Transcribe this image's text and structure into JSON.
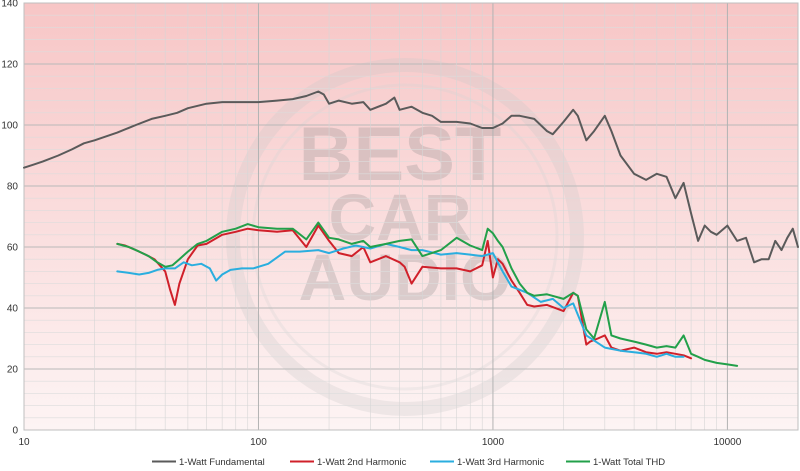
{
  "chart_data": {
    "type": "line",
    "title": "",
    "xlabel": "",
    "ylabel": "",
    "xscale": "log",
    "xlim": [
      10,
      20000
    ],
    "ylim": [
      0,
      140
    ],
    "grid": true,
    "legend_position": "bottom",
    "background": "pink gradient toward top",
    "watermark": "BEST CAR AUDIO",
    "x_tick_labels": [
      "10",
      "100",
      "1000",
      "10000"
    ],
    "x_tick_values": [
      10,
      100,
      1000,
      10000
    ],
    "y_tick_labels": [
      "0",
      "20",
      "40",
      "60",
      "80",
      "100",
      "120",
      "140"
    ],
    "y_tick_values": [
      0,
      20,
      40,
      60,
      80,
      100,
      120,
      140
    ],
    "series": [
      {
        "name": "1-Watt Fundamental",
        "color": "#5a5a5a",
        "x": [
          10,
          11,
          12,
          14,
          16,
          18,
          20,
          25,
          30,
          35,
          40,
          45,
          50,
          60,
          70,
          80,
          100,
          120,
          140,
          160,
          180,
          190,
          200,
          220,
          250,
          280,
          300,
          350,
          380,
          400,
          450,
          500,
          550,
          600,
          700,
          800,
          900,
          1000,
          1100,
          1200,
          1300,
          1500,
          1700,
          1800,
          2000,
          2200,
          2300,
          2500,
          2700,
          3000,
          3200,
          3500,
          4000,
          4500,
          5000,
          5500,
          6000,
          6500,
          7000,
          7500,
          8000,
          8500,
          9000,
          10000,
          11000,
          12000,
          13000,
          14000,
          15000,
          16000,
          17000,
          18000,
          19000,
          20000
        ],
        "y": [
          86,
          87,
          88,
          90,
          92,
          94,
          95,
          97.5,
          100,
          102,
          103,
          104,
          105.5,
          107,
          107.5,
          107.5,
          107.5,
          108,
          108.5,
          109.5,
          111,
          110,
          107,
          108,
          107,
          107.5,
          105,
          107,
          109,
          105,
          106,
          104,
          103,
          101,
          101,
          100.5,
          99,
          99,
          100.5,
          103,
          103,
          102,
          98,
          97,
          101,
          105,
          103,
          95,
          98,
          103,
          98,
          90,
          84,
          82,
          84,
          83,
          76,
          81,
          71,
          62,
          67,
          65,
          64,
          67,
          62,
          63,
          55,
          56,
          56,
          62,
          59,
          63,
          66,
          60
        ]
      },
      {
        "name": "1-Watt 2nd Harmonic",
        "color": "#d0202a",
        "x": [
          25,
          27,
          30,
          33,
          36,
          40,
          42,
          44,
          46,
          50,
          55,
          60,
          70,
          80,
          90,
          100,
          120,
          140,
          160,
          180,
          200,
          220,
          250,
          280,
          300,
          350,
          400,
          420,
          450,
          500,
          600,
          700,
          800,
          900,
          950,
          1000,
          1050,
          1100,
          1200,
          1300,
          1400,
          1500,
          1700,
          2000,
          2200,
          2300,
          2500,
          2600,
          2800,
          3000,
          3200,
          3500,
          4000,
          4500,
          5000,
          5500,
          6000,
          6500,
          7000
        ],
        "y": [
          61,
          60.5,
          59,
          57.5,
          56,
          52,
          46,
          41,
          48,
          56,
          60.5,
          61,
          64,
          65,
          66,
          65.5,
          65,
          65.5,
          60,
          67,
          62,
          58,
          57,
          60,
          55,
          57,
          55,
          53.5,
          48,
          53.5,
          53,
          53,
          52,
          54,
          62,
          50,
          56,
          54.5,
          49,
          45,
          41,
          40.5,
          41,
          39,
          45,
          44,
          28,
          29,
          30,
          31,
          27,
          26,
          27,
          25.5,
          25,
          25.5,
          25,
          24.5,
          23.5
        ]
      },
      {
        "name": "1-Watt 3rd Harmonic",
        "color": "#2aaedf",
        "x": [
          25,
          28,
          31,
          34,
          37,
          40,
          44,
          48,
          52,
          57,
          62,
          66,
          70,
          76,
          85,
          95,
          110,
          130,
          150,
          180,
          200,
          230,
          260,
          300,
          350,
          400,
          450,
          500,
          600,
          700,
          800,
          900,
          1000,
          1100,
          1200,
          1400,
          1600,
          1800,
          2000,
          2200,
          2500,
          3000,
          3500,
          4000,
          4500,
          5000,
          5500,
          6000,
          6500
        ],
        "y": [
          52,
          51.5,
          51,
          51.5,
          52.5,
          53,
          53,
          55,
          54,
          54.5,
          53,
          49,
          51,
          52.5,
          53,
          53,
          54.5,
          58.5,
          58.5,
          59,
          58,
          59.5,
          60.5,
          59.5,
          61,
          60,
          59,
          59,
          57.5,
          58,
          57.5,
          57,
          58,
          52,
          47,
          45,
          42,
          43,
          40,
          41.5,
          31,
          27,
          26,
          25.5,
          25,
          24,
          25,
          24,
          24
        ]
      },
      {
        "name": "1-Watt Total THD",
        "color": "#22a04a",
        "x": [
          25,
          28,
          31,
          34,
          37,
          40,
          43,
          46,
          50,
          55,
          60,
          70,
          80,
          90,
          100,
          120,
          140,
          160,
          180,
          200,
          220,
          250,
          280,
          300,
          350,
          400,
          450,
          500,
          600,
          700,
          800,
          900,
          950,
          1000,
          1050,
          1100,
          1200,
          1300,
          1400,
          1500,
          1700,
          2000,
          2200,
          2300,
          2500,
          2700,
          3000,
          3200,
          3500,
          4000,
          4500,
          5000,
          5500,
          6000,
          6500,
          7000,
          7500,
          8000,
          9000,
          10000,
          11000
        ],
        "y": [
          61,
          60,
          58.5,
          57,
          55,
          53.5,
          54,
          56,
          58.5,
          61,
          62,
          65,
          66,
          67.5,
          66.5,
          66,
          66,
          62.5,
          68,
          63,
          62.5,
          61,
          62,
          60,
          61,
          62,
          62.5,
          57,
          59,
          63,
          60.5,
          59,
          66,
          64.5,
          62,
          60,
          53,
          48,
          45,
          44,
          44.5,
          43,
          45,
          44,
          33,
          30,
          42,
          31,
          30,
          29,
          28,
          27,
          27.5,
          27,
          31,
          25,
          24,
          23,
          22,
          21.5,
          21
        ]
      }
    ]
  }
}
